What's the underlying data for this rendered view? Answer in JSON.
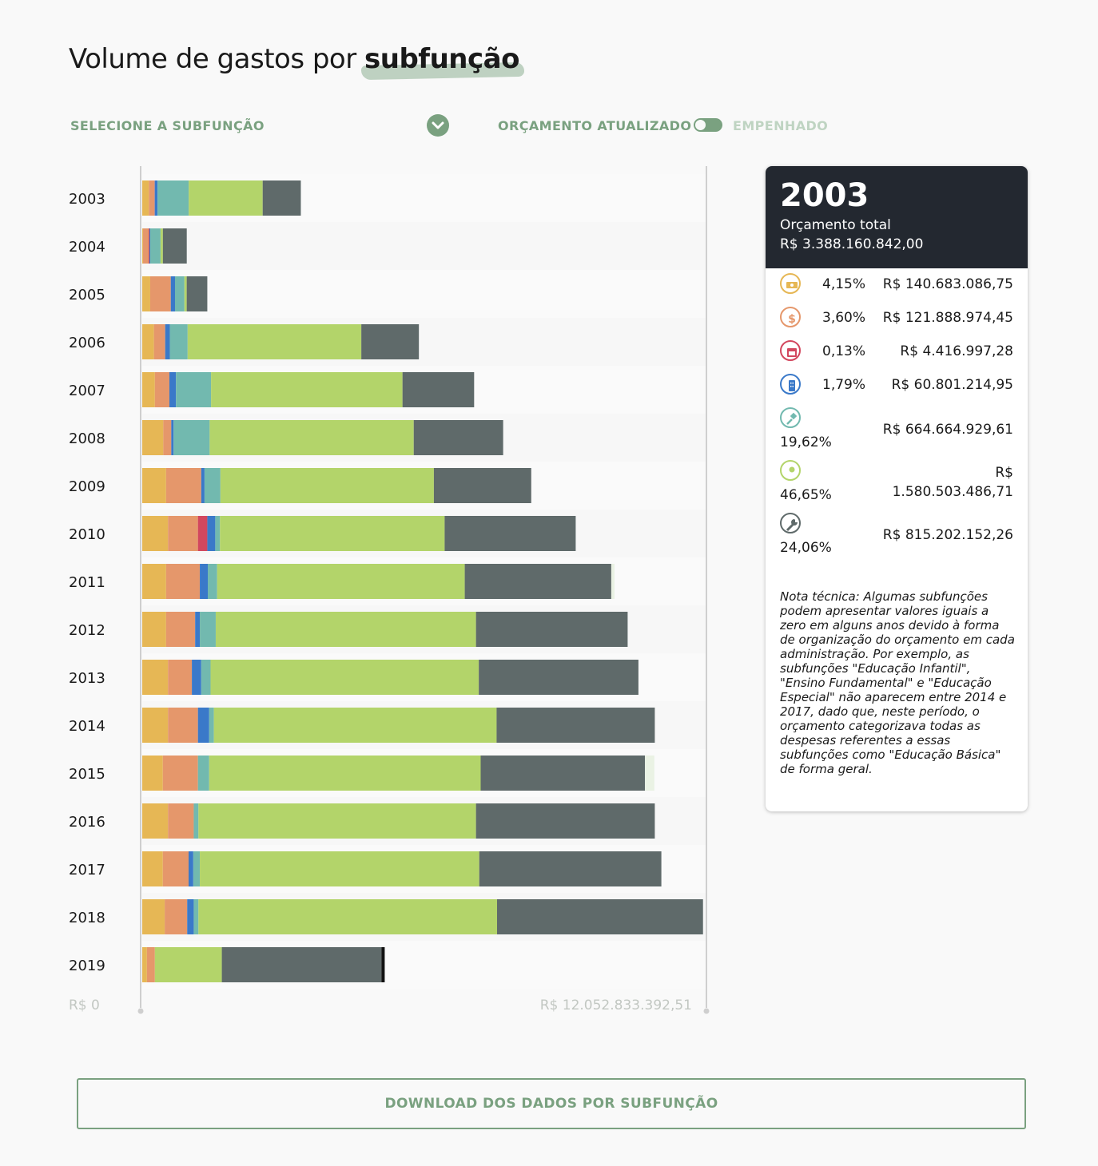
{
  "title": {
    "prefix": "Volume de gastos por",
    "highlight": "subfunção"
  },
  "controls": {
    "select_label": "SELECIONE A SUBFUNÇÃO",
    "toggle_left": "ORÇAMENTO ATUALIZADO",
    "toggle_right": "EMPENHADO"
  },
  "colors": {
    "s1": "#e6b755",
    "s2": "#e5976b",
    "s3": "#d2475e",
    "s4": "#3a79c9",
    "s5": "#72b9af",
    "s6": "#b3d46a",
    "s7": "#5f6a6a",
    "s8": "#eaf2e4",
    "s9": "#111111",
    "accent": "#7aa180"
  },
  "chart_data": {
    "type": "bar",
    "orientation": "horizontal",
    "stacked": true,
    "xlim": [
      0,
      12052833392.51
    ],
    "xaxis_min_label": "R$ 0",
    "xaxis_max_label": "R$ 12.052.833.392,51",
    "categories": [
      "2003",
      "2004",
      "2005",
      "2006",
      "2007",
      "2008",
      "2009",
      "2010",
      "2011",
      "2012",
      "2013",
      "2014",
      "2015",
      "2016",
      "2017",
      "2018",
      "2019"
    ],
    "series": [
      {
        "color_key": "s1",
        "values": [
          140683086.75,
          17000000,
          170000000,
          250000000,
          270000000,
          450000000,
          510000000,
          550000000,
          510000000,
          510000000,
          550000000,
          550000000,
          440000000,
          550000000,
          440000000,
          480000000,
          100000000
        ]
      },
      {
        "color_key": "s2",
        "values": [
          121888974.45,
          120000000,
          440000000,
          240000000,
          310000000,
          170000000,
          750000000,
          640000000,
          720000000,
          620000000,
          510000000,
          640000000,
          750000000,
          550000000,
          550000000,
          480000000,
          170000000
        ]
      },
      {
        "color_key": "s3",
        "values": [
          4416997.28,
          17000000,
          0,
          0,
          0,
          0,
          0,
          200000000,
          0,
          0,
          0,
          0,
          0,
          0,
          0,
          0,
          0
        ]
      },
      {
        "color_key": "s4",
        "values": [
          60801214.95,
          17000000,
          90000000,
          100000000,
          140000000,
          50000000,
          70000000,
          170000000,
          170000000,
          100000000,
          200000000,
          240000000,
          0,
          0,
          100000000,
          140000000,
          0
        ]
      },
      {
        "color_key": "s5",
        "values": [
          664664929.61,
          220000000,
          200000000,
          380000000,
          750000000,
          770000000,
          340000000,
          100000000,
          200000000,
          340000000,
          200000000,
          100000000,
          240000000,
          100000000,
          140000000,
          100000000,
          0
        ]
      },
      {
        "color_key": "s6",
        "values": [
          1580503486.71,
          50000000,
          50000000,
          3710000000,
          4090000000,
          4360000000,
          4560000000,
          4800000000,
          5290000000,
          5560000000,
          5730000000,
          6040000000,
          5800000000,
          5930000000,
          5970000000,
          6380000000,
          1430000000
        ]
      },
      {
        "color_key": "s7",
        "values": [
          815202152.26,
          510000000,
          440000000,
          1230000000,
          1530000000,
          1910000000,
          2080000000,
          2800000000,
          3130000000,
          3240000000,
          3410000000,
          3380000000,
          3510000000,
          3820000000,
          3890000000,
          4400000000,
          3410000000
        ]
      },
      {
        "color_key": "s8",
        "values": [
          0,
          0,
          0,
          0,
          0,
          0,
          0,
          0,
          70000000,
          0,
          0,
          0,
          200000000,
          0,
          0,
          0,
          0
        ]
      },
      {
        "color_key": "s9",
        "values": [
          0,
          0,
          0,
          0,
          0,
          0,
          0,
          0,
          0,
          0,
          0,
          0,
          0,
          0,
          0,
          0,
          70000000
        ]
      }
    ]
  },
  "panel": {
    "year": "2003",
    "total_label": "Orçamento total",
    "total_value": "R$ 3.388.160.842,00",
    "rows": [
      {
        "icon": "money-icon",
        "color_key": "s1",
        "pct": "4,15%",
        "value": "R$ 140.683.086,75"
      },
      {
        "icon": "dollar-icon",
        "color_key": "s2",
        "pct": "3,60%",
        "value": "R$ 121.888.974,45"
      },
      {
        "icon": "calendar-icon",
        "color_key": "s3",
        "pct": "0,13%",
        "value": "R$ 4.416.997,28"
      },
      {
        "icon": "building-icon",
        "color_key": "s4",
        "pct": "1,79%",
        "value": "R$ 60.801.214,95"
      },
      {
        "icon": "gavel-icon",
        "color_key": "s5",
        "pct": "19,62%",
        "value": "R$ 664.664.929,61"
      },
      {
        "icon": "person-icon",
        "color_key": "s6",
        "pct": "46,65%",
        "value_line1": "R$",
        "value_line2": "1.580.503.486,71"
      },
      {
        "icon": "wrench-icon",
        "color_key": "s7",
        "pct": "24,06%",
        "value": "R$ 815.202.152,26"
      }
    ],
    "note": "Nota técnica: Algumas subfunções podem apresentar valores iguais a zero em alguns anos devido à forma de organização do orçamento em cada administração. Por exemplo, as subfunções \"Educação Infantil\", \"Ensino Fundamental\" e \"Educação Especial\" não aparecem entre 2014 e 2017, dado que, neste período, o orçamento categorizava todas as despesas referentes a essas subfunções como \"Educação Básica\" de forma geral."
  },
  "download_label": "DOWNLOAD DOS DADOS POR SUBFUNÇÃO"
}
